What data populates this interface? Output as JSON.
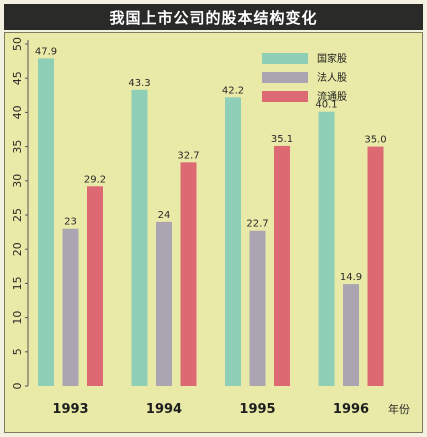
{
  "chart_data": {
    "type": "bar",
    "title": "我国上市公司的股本结构变化",
    "x_unit_label": "年份",
    "categories": [
      "1993",
      "1994",
      "1995",
      "1996"
    ],
    "ylim": [
      0,
      50
    ],
    "y_ticks": [
      "0",
      "5",
      "10",
      "15",
      "20",
      "25",
      "30",
      "35",
      "40",
      "45",
      "50"
    ],
    "grid": false,
    "legend_position": "top-right",
    "series": [
      {
        "name": "国家股",
        "color": "#8fcfb8",
        "values": [
          47.9,
          43.3,
          42.2,
          40.1
        ],
        "labels": [
          "47.9",
          "43.3",
          "42.2",
          "40.1"
        ]
      },
      {
        "name": "法人股",
        "color": "#aba5b2",
        "values": [
          23,
          24,
          22.7,
          14.9
        ],
        "labels": [
          "23",
          "24",
          "22.7",
          "14.9"
        ]
      },
      {
        "name": "流通股",
        "color": "#dd6a72",
        "values": [
          29.2,
          32.7,
          35.1,
          35.0
        ],
        "labels": [
          "29.2",
          "32.7",
          "35.1",
          "35.0"
        ]
      }
    ]
  }
}
